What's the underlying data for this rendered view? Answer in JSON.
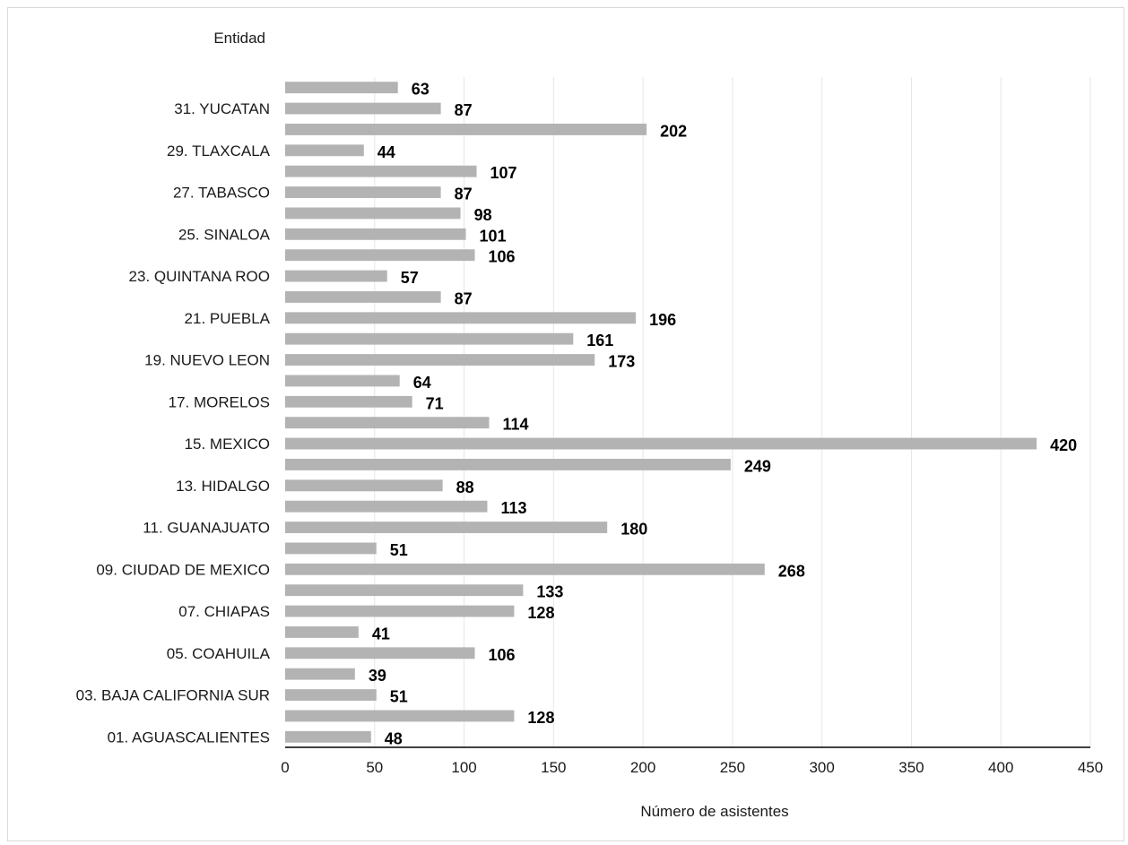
{
  "chart_data": {
    "type": "bar",
    "orientation": "horizontal",
    "title": "",
    "ylabel": "Entidad",
    "xlabel": "Número de asistentes",
    "xlim": [
      0,
      450
    ],
    "xticks": [
      0,
      50,
      100,
      150,
      200,
      250,
      300,
      350,
      400,
      450
    ],
    "grid": "vertical",
    "bar_color": "#b3b3b3",
    "categories": [
      "01. AGUASCALIENTES",
      "",
      "03. BAJA CALIFORNIA SUR",
      "",
      "05. COAHUILA",
      "",
      "07. CHIAPAS",
      "",
      "09. CIUDAD DE MEXICO",
      "",
      "11. GUANAJUATO",
      "",
      "13. HIDALGO",
      "",
      "15. MEXICO",
      "",
      "17. MORELOS",
      "",
      "19. NUEVO LEON",
      "",
      "21. PUEBLA",
      "",
      "23. QUINTANA ROO",
      "",
      "25. SINALOA",
      "",
      "27. TABASCO",
      "",
      "29. TLAXCALA",
      "",
      "31. YUCATAN",
      ""
    ],
    "values": [
      48,
      128,
      51,
      39,
      106,
      41,
      128,
      133,
      268,
      51,
      180,
      113,
      88,
      249,
      420,
      114,
      71,
      64,
      173,
      161,
      196,
      87,
      57,
      106,
      101,
      98,
      87,
      107,
      44,
      202,
      87,
      63
    ]
  }
}
